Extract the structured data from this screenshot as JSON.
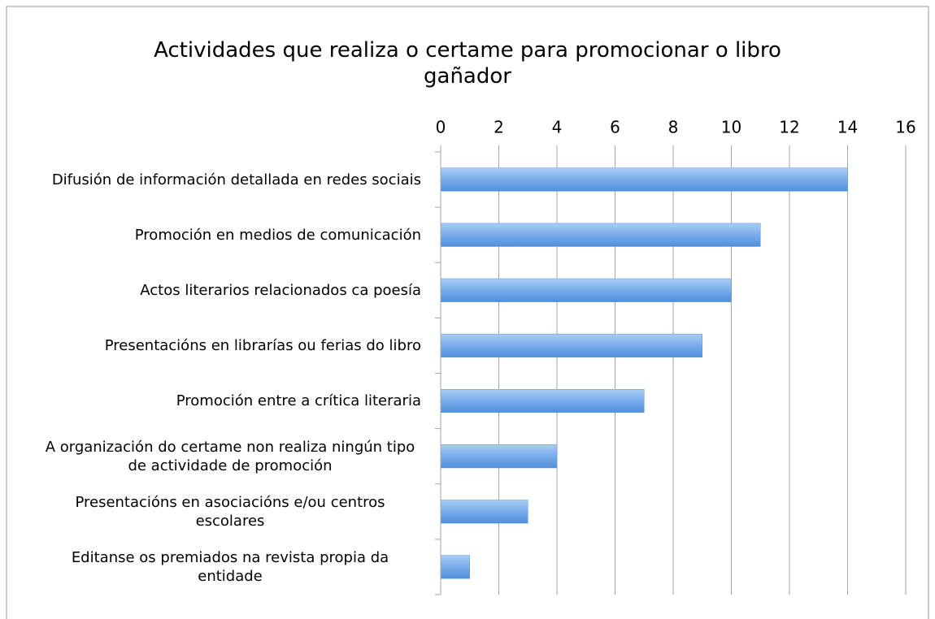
{
  "chart_data": {
    "type": "bar",
    "orientation": "horizontal",
    "title": "Actividades que realiza o certame para promocionar o libro gañador",
    "categories": [
      "Difusión de información detallada en redes sociais",
      "Promoción en medios de comunicación",
      "Actos literarios relacionados ca poesía",
      "Presentacións en librarías ou ferias do libro",
      "Promoción entre a crítica literaria",
      "A organización do certame non realiza ningún tipo de actividade de promoción",
      "Presentacións en asociacións e/ou centros escolares",
      "Editanse os premiados na revista propia da entidade"
    ],
    "values": [
      14,
      11,
      10,
      9,
      7,
      4,
      3,
      1
    ],
    "color": "#78acea",
    "xlim": [
      0,
      16
    ],
    "xticks": [
      0,
      2,
      4,
      6,
      8,
      10,
      12,
      14,
      16
    ],
    "grid": true
  }
}
